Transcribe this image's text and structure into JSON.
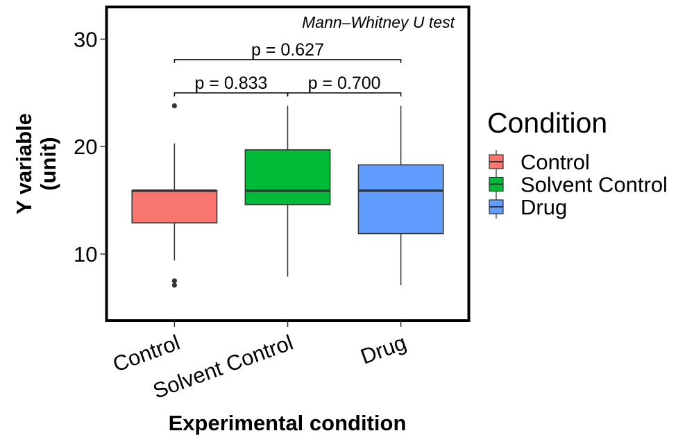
{
  "chart_data": {
    "type": "boxplot",
    "xlabel": "Experimental condition",
    "ylabel_lines": [
      "Y variable",
      "(unit)"
    ],
    "ylim": [
      3.8,
      33
    ],
    "yticks": [
      10,
      20,
      30
    ],
    "grid": false,
    "annotation": "Mann–Whitney U test",
    "categories": [
      "Control",
      "Solvent Control",
      "Drug"
    ],
    "boxes": [
      {
        "name": "Control",
        "color": "#F8766D",
        "q1": 12.9,
        "median": 15.9,
        "q3": 15.9,
        "whisker_low": 9.4,
        "whisker_high": 20.3,
        "outliers": [
          23.8,
          7.5,
          7.1
        ]
      },
      {
        "name": "Solvent Control",
        "color": "#00BA38",
        "q1": 14.6,
        "median": 15.9,
        "q3": 19.7,
        "whisker_low": 7.9,
        "whisker_high": 23.8,
        "outliers": []
      },
      {
        "name": "Drug",
        "color": "#619CFF",
        "q1": 11.9,
        "median": 15.9,
        "q3": 18.3,
        "whisker_low": 7.1,
        "whisker_high": 23.8,
        "outliers": []
      }
    ],
    "comparisons": [
      {
        "from": 0,
        "to": 1,
        "label": "p =  0.833",
        "y": 25.0
      },
      {
        "from": 1,
        "to": 2,
        "label": "p =  0.700",
        "y": 25.0
      },
      {
        "from": 0,
        "to": 2,
        "label": "p =  0.627",
        "y": 28.1
      }
    ],
    "legend": {
      "title": "Condition",
      "position": "right",
      "items": [
        "Control",
        "Solvent Control",
        "Drug"
      ]
    }
  }
}
